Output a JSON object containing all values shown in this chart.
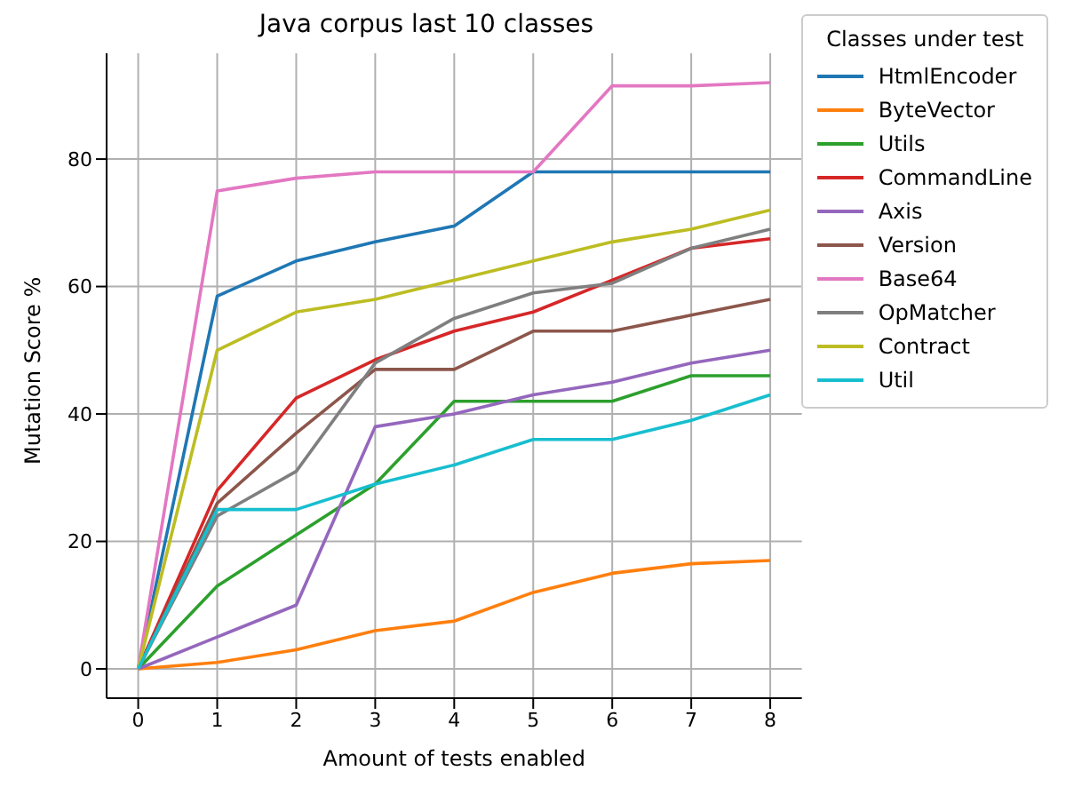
{
  "chart_data": {
    "type": "line",
    "title": "Java corpus last 10 classes",
    "xlabel": "Amount of tests enabled",
    "ylabel": "Mutation Score %",
    "legend_title": "Classes under test",
    "x": [
      0,
      1,
      2,
      3,
      4,
      5,
      6,
      7,
      8
    ],
    "series": [
      {
        "name": "HtmlEncoder",
        "color": "#1f77b4",
        "values": [
          0,
          58.5,
          64,
          67,
          69.5,
          78,
          78,
          78,
          78
        ]
      },
      {
        "name": "ByteVector",
        "color": "#ff7f0e",
        "values": [
          0,
          1,
          3,
          6,
          7.5,
          12,
          15,
          16.5,
          17
        ]
      },
      {
        "name": "Utils",
        "color": "#2ca02c",
        "values": [
          0,
          13,
          21,
          29,
          42,
          42,
          42,
          46,
          46
        ]
      },
      {
        "name": "CommandLine",
        "color": "#d62728",
        "values": [
          0,
          28,
          42.5,
          48.5,
          53,
          56,
          61,
          66,
          67.5
        ]
      },
      {
        "name": "Axis",
        "color": "#9467bd",
        "values": [
          0,
          5,
          10,
          38,
          40,
          43,
          45,
          48,
          50
        ]
      },
      {
        "name": "Version",
        "color": "#8c564b",
        "values": [
          0,
          26,
          37,
          47,
          47,
          53,
          53,
          55.5,
          58
        ]
      },
      {
        "name": "Base64",
        "color": "#e377c2",
        "values": [
          0,
          75,
          77,
          78,
          78,
          78,
          91.5,
          91.5,
          92
        ]
      },
      {
        "name": "OpMatcher",
        "color": "#7f7f7f",
        "values": [
          0,
          24,
          31,
          48,
          55,
          59,
          60.5,
          66,
          69
        ]
      },
      {
        "name": "Contract",
        "color": "#bcbd22",
        "values": [
          0,
          50,
          56,
          58,
          61,
          64,
          67,
          69,
          72
        ]
      },
      {
        "name": "Util",
        "color": "#17becf",
        "values": [
          0,
          25,
          25,
          29,
          32,
          36,
          36,
          39,
          43
        ]
      }
    ],
    "xlim": [
      -0.4,
      8.4
    ],
    "xticks": [
      0,
      1,
      2,
      3,
      4,
      5,
      6,
      7,
      8
    ],
    "ylim": [
      -4.6,
      96.6
    ],
    "yticks": [
      0,
      20,
      40,
      60,
      80
    ],
    "grid": true,
    "legend": "right",
    "marker": "none",
    "line_style": "solid"
  }
}
